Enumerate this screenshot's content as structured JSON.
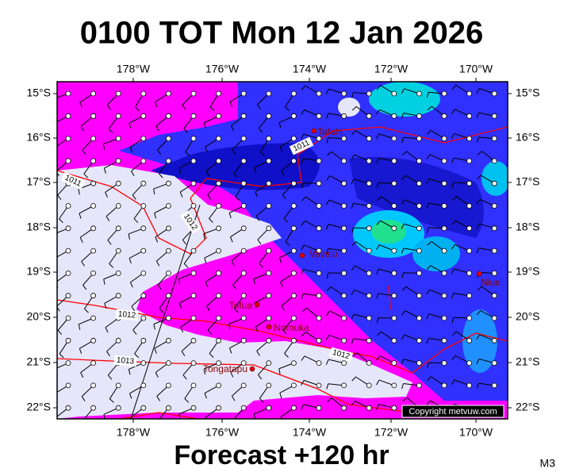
{
  "header": {
    "title": "0100 TOT Mon 12 Jan 2026"
  },
  "axes": {
    "lon_ticks": [
      "178°W",
      "176°W",
      "174°W",
      "172°W",
      "170°W"
    ],
    "lat_ticks": [
      "15°S",
      "16°S",
      "17°S",
      "18°S",
      "19°S",
      "20°S",
      "21°S",
      "22°S"
    ]
  },
  "places": [
    {
      "label": "Tafahi"
    },
    {
      "label": "Vava'u"
    },
    {
      "label": "Niue"
    },
    {
      "label": "Tofua"
    },
    {
      "label": "Nomuka"
    },
    {
      "label": "Tongatapu"
    }
  ],
  "isobar_labels": [
    "1011",
    "1011",
    "1012",
    "1012",
    "1013",
    "1012"
  ],
  "copyright": "Copyright metvuw.com",
  "footer": {
    "forecast": "Forecast +120 hr",
    "model": "M3"
  }
}
